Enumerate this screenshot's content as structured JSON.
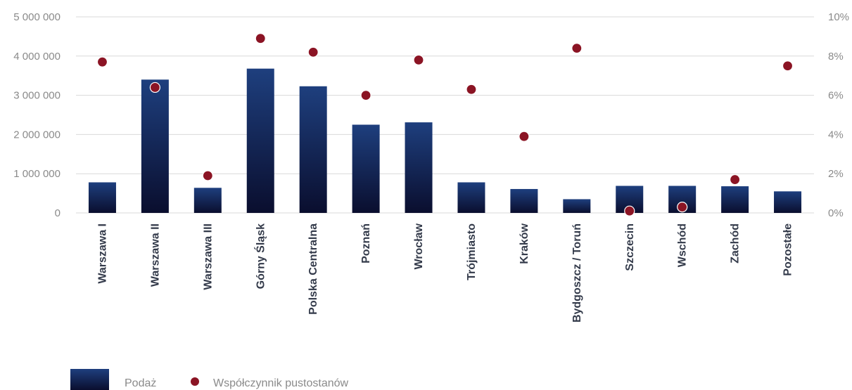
{
  "chart_data": {
    "type": "bar",
    "categories": [
      "Warszawa I",
      "Warszawa II",
      "Warszawa III",
      "Górny Śląsk",
      "Polska Centralna",
      "Poznań",
      "Wrocław",
      "Trójmiasto",
      "Kraków",
      "Bydgoszcz / Toruń",
      "Szczecin",
      "Wschód",
      "Zachód",
      "Pozostałe"
    ],
    "series": [
      {
        "name": "Podaż",
        "kind": "bar",
        "axis": "left",
        "values": [
          780000,
          3400000,
          640000,
          3680000,
          3230000,
          2250000,
          2310000,
          780000,
          610000,
          350000,
          690000,
          690000,
          680000,
          550000
        ]
      },
      {
        "name": "Współczynnik pustostanów",
        "kind": "scatter",
        "axis": "right",
        "values": [
          7.7,
          6.4,
          1.9,
          8.9,
          8.2,
          6.0,
          7.8,
          6.3,
          3.9,
          8.4,
          0.1,
          0.3,
          1.7,
          7.5
        ]
      }
    ],
    "y_left": {
      "min": 0,
      "max": 5000000,
      "ticks": [
        0,
        1000000,
        2000000,
        3000000,
        4000000,
        5000000
      ],
      "tick_labels": [
        "0",
        "1 000 000",
        "2 000 000",
        "3 000 000",
        "4 000 000",
        "5 000 000"
      ]
    },
    "y_right": {
      "min": 0,
      "max": 10,
      "ticks": [
        0,
        2,
        4,
        6,
        8,
        10
      ],
      "tick_labels": [
        "0%",
        "2%",
        "4%",
        "6%",
        "8%",
        "10%"
      ]
    },
    "grid": true,
    "legend_position": "bottom-left",
    "colors": {
      "bar_top": "#1e3f7e",
      "bar_bottom": "#0a0e2e",
      "point": "#8b1424",
      "point_outline": "#ffffff",
      "grid": "#d9d9d9",
      "tick_text": "#8a8a8a",
      "category_text": "#333a4a"
    }
  }
}
